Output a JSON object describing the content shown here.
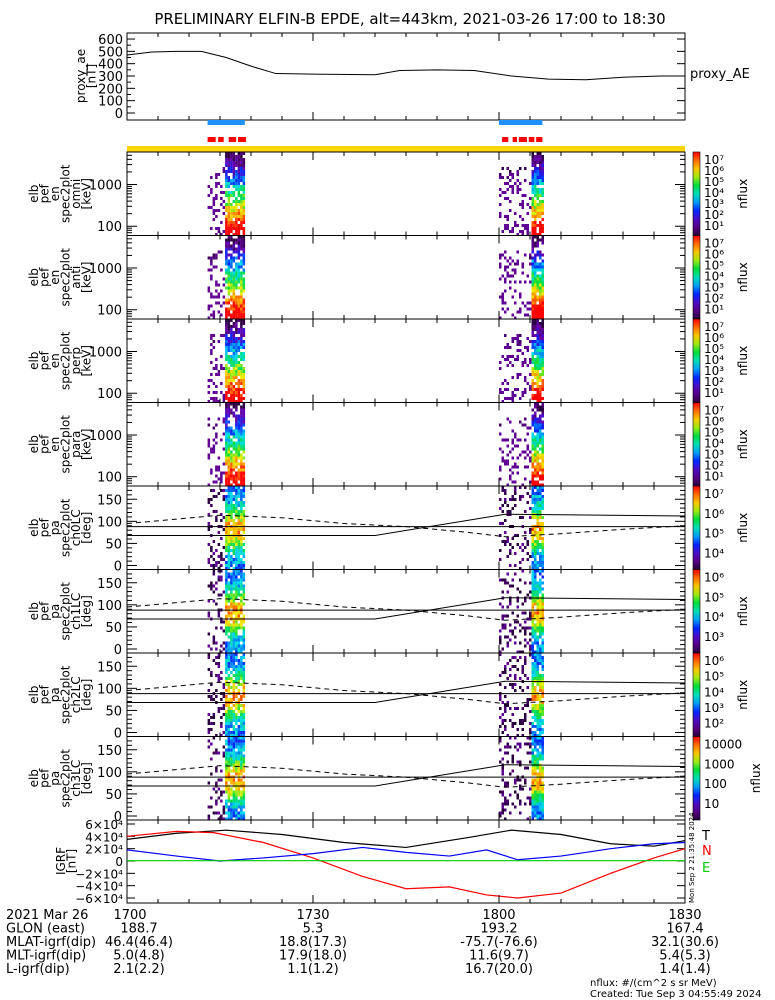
{
  "title": "PRELIMINARY ELFIN-B EPDE, alt=443km, 2021-03-26 17:00 to 18:30",
  "chart_data": [
    {
      "type": "line",
      "name": "proxy_ae",
      "ylabel": [
        "proxy_ae",
        "[nT]"
      ],
      "legend": "proxy_AE",
      "ylim": [
        0,
        650
      ],
      "yticks": [
        "0",
        "100",
        "200",
        "300",
        "400",
        "500",
        "600"
      ],
      "x_minutes": [
        0,
        4,
        8,
        12,
        16,
        20,
        24,
        30,
        40,
        44,
        50,
        56,
        62,
        68,
        74,
        80,
        86,
        90
      ],
      "y": [
        470,
        495,
        500,
        500,
        450,
        380,
        320,
        315,
        310,
        345,
        350,
        345,
        300,
        275,
        270,
        290,
        300,
        300
      ]
    },
    {
      "type": "timeline",
      "name": "science-zone-indicators",
      "blue_bars_minutes": [
        [
          13,
          19
        ],
        [
          60,
          67
        ]
      ],
      "red_segments_minutes": [
        [
          13,
          14.3
        ],
        [
          14.7,
          15.6
        ],
        [
          16.4,
          17.6
        ],
        [
          17.9,
          19.2
        ],
        [
          60.5,
          61.5
        ],
        [
          62.2,
          62.9
        ],
        [
          63.2,
          64.5
        ],
        [
          64.8,
          65.7
        ],
        [
          66,
          67
        ]
      ]
    },
    {
      "type": "heatmap",
      "panels": [
        {
          "label": [
            "elb",
            "pef",
            "en",
            "spec2plot",
            "omni",
            "[keV]"
          ],
          "scale": "log",
          "ylim": [
            60,
            6000
          ],
          "yticks": [
            "100",
            "1000"
          ],
          "cbar": [
            "10⁷",
            "10⁶",
            "10⁵",
            "10⁴",
            "10³",
            "10²",
            "10¹"
          ],
          "cbar_label": "nflux"
        },
        {
          "label": [
            "elb",
            "pef",
            "en",
            "spec2plot",
            "anti",
            "[keV]"
          ],
          "scale": "log",
          "ylim": [
            60,
            6000
          ],
          "yticks": [
            "100",
            "1000"
          ],
          "cbar": [
            "10⁷",
            "10⁶",
            "10⁵",
            "10⁴",
            "10³",
            "10²",
            "10¹"
          ],
          "cbar_label": "nflux"
        },
        {
          "label": [
            "elb",
            "pef",
            "en",
            "spec2plot",
            "perp",
            "[keV]"
          ],
          "scale": "log",
          "ylim": [
            60,
            6000
          ],
          "yticks": [
            "100",
            "1000"
          ],
          "cbar": [
            "10⁷",
            "10⁶",
            "10⁵",
            "10⁴",
            "10³",
            "10²",
            "10¹"
          ],
          "cbar_label": "nflux"
        },
        {
          "label": [
            "elb",
            "pef",
            "en",
            "spec2plot",
            "para",
            "[keV]"
          ],
          "scale": "log",
          "ylim": [
            60,
            6000
          ],
          "yticks": [
            "100",
            "1000"
          ],
          "cbar": [
            "10⁷",
            "10⁶",
            "10⁵",
            "10⁴",
            "10³",
            "10²",
            "10¹"
          ],
          "cbar_label": "nflux"
        },
        {
          "label": [
            "elb",
            "pef",
            "pa",
            "spec2plot",
            "ch0LC",
            "[deg]"
          ],
          "scale": "lin",
          "ylim": [
            0,
            180
          ],
          "yticks": [
            "0",
            "50",
            "100",
            "150"
          ],
          "cbar": [
            "10⁷",
            "10⁶",
            "10⁵",
            "10⁴"
          ],
          "cbar_label": "nflux"
        },
        {
          "label": [
            "elb",
            "pef",
            "pa",
            "spec2plot",
            "ch1LC",
            "[deg]"
          ],
          "scale": "lin",
          "ylim": [
            0,
            180
          ],
          "yticks": [
            "0",
            "50",
            "100",
            "150"
          ],
          "cbar": [
            "10⁶",
            "10⁵",
            "10⁴",
            "10³"
          ],
          "cbar_label": "nflux"
        },
        {
          "label": [
            "elb",
            "pef",
            "pa",
            "spec2plot",
            "ch2LC",
            "[deg]"
          ],
          "scale": "lin",
          "ylim": [
            0,
            180
          ],
          "yticks": [
            "0",
            "50",
            "100",
            "150"
          ],
          "cbar": [
            "10⁶",
            "10⁵",
            "10⁴",
            "10³",
            "10²"
          ],
          "cbar_label": "nflux"
        },
        {
          "label": [
            "elb",
            "pef",
            "pa",
            "spec2plot",
            "ch3LC",
            "[deg]"
          ],
          "scale": "lin",
          "ylim": [
            0,
            180
          ],
          "yticks": [
            "0",
            "50",
            "100",
            "150"
          ],
          "cbar": [
            "10000",
            "1000",
            "100",
            "10"
          ],
          "cbar_label": "nflux"
        }
      ],
      "bursts_minutes": [
        [
          13,
          19
        ],
        [
          60,
          67
        ]
      ],
      "loss_cone_solid_deg": {
        "x": [
          0,
          40,
          61,
          90
        ],
        "y": [
          68,
          68,
          116,
          112
        ]
      },
      "loss_cone_mid_deg": {
        "x": [
          0,
          90
        ],
        "y": [
          88,
          88
        ]
      },
      "loss_cone_dashed_deg": {
        "x": [
          0,
          8,
          15,
          25,
          35,
          45,
          55,
          61,
          70,
          80,
          90
        ],
        "y": [
          95,
          105,
          114,
          108,
          95,
          88,
          75,
          65,
          72,
          82,
          90
        ]
      }
    },
    {
      "type": "line",
      "name": "igrf",
      "ylabel": [
        "IGRF",
        "[nT]"
      ],
      "ylim": [
        -65000,
        65000
      ],
      "yticks": [
        "6×10⁴",
        "4×10⁴",
        "2×10⁴",
        "0",
        "−2×10⁴",
        "−4×10⁴",
        "−6×10⁴"
      ],
      "legend": [
        "T",
        "N",
        "E"
      ],
      "series": [
        {
          "name": "T",
          "color": "#000000",
          "x": [
            0,
            8,
            16,
            25,
            35,
            45,
            55,
            62,
            70,
            78,
            85,
            90
          ],
          "y": [
            35000,
            45000,
            50000,
            43000,
            30000,
            22000,
            38000,
            50000,
            43000,
            28000,
            24000,
            33000
          ]
        },
        {
          "name": "N",
          "color": "#ff0000",
          "x": [
            0,
            8,
            14,
            22,
            30,
            38,
            45,
            52,
            58,
            63,
            70,
            78,
            85,
            90
          ],
          "y": [
            40000,
            48000,
            46000,
            30000,
            5000,
            -25000,
            -45000,
            -42000,
            -55000,
            -60000,
            -52000,
            -20000,
            5000,
            20000
          ]
        },
        {
          "name": "E",
          "color": "#0000ff",
          "x": [
            0,
            8,
            15,
            22,
            30,
            38,
            45,
            52,
            58,
            63,
            70,
            78,
            85,
            90
          ],
          "y": [
            18000,
            8000,
            0,
            5000,
            12000,
            22000,
            14000,
            8000,
            18000,
            2000,
            8000,
            20000,
            28000,
            30000
          ]
        },
        {
          "name": "Z",
          "color": "#00cc00",
          "x": [
            0,
            90
          ],
          "y": [
            500,
            500
          ]
        }
      ],
      "side_stamp": "Mon Sep  2 21:35:48 2024"
    }
  ],
  "xaxis": {
    "rows": [
      [
        "2021 Mar 26",
        "1700",
        "1730",
        "1800",
        "1830"
      ],
      [
        "GLON (east)",
        "188.7",
        "5.3",
        "193.2",
        "167.4"
      ],
      [
        "MLAT-igrf(dip)",
        "46.4(46.4)",
        "18.8(17.3)",
        "-75.7(-76.6)",
        "32.1(30.6)"
      ],
      [
        "MLT-igrf(dip)",
        "5.0(4.8)",
        "17.9(18.0)",
        "11.6(9.7)",
        "5.4(5.3)"
      ],
      [
        "L-igrf(dip)",
        "2.1(2.2)",
        "1.1(1.2)",
        "16.7(20.0)",
        "1.4(1.4)"
      ]
    ],
    "range_minutes": [
      0,
      90
    ]
  },
  "footer": {
    "units": "nflux: #/(cm^2 s sr MeV)",
    "created": "Created: Tue Sep  3 04:55:49 2024"
  },
  "colors": {
    "blue_bar": "#1e90ff",
    "red_bar": "#ff0000",
    "yellow_bar": "#ffd700"
  }
}
